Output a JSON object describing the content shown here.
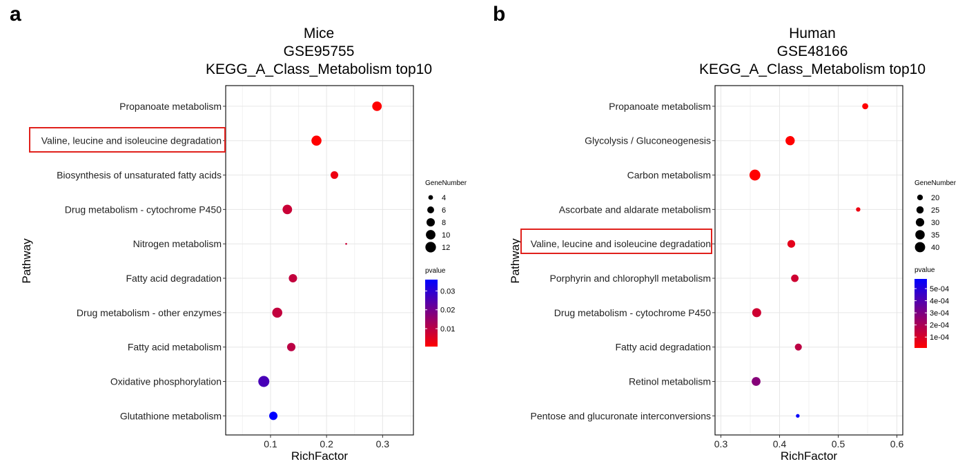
{
  "panels": [
    {
      "label": "a"
    },
    {
      "label": "b"
    }
  ],
  "chart_data": [
    {
      "type": "scatter",
      "title": [
        "Mice",
        "GSE95755",
        "KEGG_A_Class_Metabolism top10"
      ],
      "xlabel": "RichFactor",
      "ylabel": "Pathway",
      "xlim": [
        0.02,
        0.355
      ],
      "xticks": [
        0.1,
        0.2,
        0.3
      ],
      "xtick_labels": [
        "0.1",
        "0.2",
        "0.3"
      ],
      "grid": true,
      "categories": [
        "Propanoate metabolism",
        "Valine, leucine and isoleucine degradation",
        "Biosynthesis of unsaturated fatty acids",
        "Drug metabolism - cytochrome P450",
        "Nitrogen metabolism",
        "Fatty acid degradation",
        "Drug metabolism - other enzymes",
        "Fatty acid metabolism",
        "Oxidative phosphorylation",
        "Glutathione metabolism"
      ],
      "highlighted_category": "Valine, leucine and isoleucine degradation",
      "points": [
        {
          "pathway": "Propanoate metabolism",
          "x": 0.29,
          "gene_number": 10,
          "pvalue": 0.0005
        },
        {
          "pathway": "Valine, leucine and isoleucine degradation",
          "x": 0.182,
          "gene_number": 11,
          "pvalue": 0.0005
        },
        {
          "pathway": "Biosynthesis of unsaturated fatty acids",
          "x": 0.214,
          "gene_number": 7,
          "pvalue": 0.003
        },
        {
          "pathway": "Drug metabolism - cytochrome P450",
          "x": 0.13,
          "gene_number": 10,
          "pvalue": 0.008
        },
        {
          "pathway": "Nitrogen metabolism",
          "x": 0.235,
          "gene_number": 3,
          "pvalue": 0.008
        },
        {
          "pathway": "Fatty acid degradation",
          "x": 0.14,
          "gene_number": 8,
          "pvalue": 0.009
        },
        {
          "pathway": "Drug metabolism - other enzymes",
          "x": 0.112,
          "gene_number": 11,
          "pvalue": 0.009
        },
        {
          "pathway": "Fatty acid metabolism",
          "x": 0.137,
          "gene_number": 8,
          "pvalue": 0.01
        },
        {
          "pathway": "Oxidative phosphorylation",
          "x": 0.088,
          "gene_number": 13,
          "pvalue": 0.026
        },
        {
          "pathway": "Glutathione metabolism",
          "x": 0.105,
          "gene_number": 8,
          "pvalue": 0.036
        }
      ],
      "size_legend": {
        "title": "GeneNumber",
        "values": [
          4,
          6,
          8,
          10,
          12
        ],
        "labels": [
          "4",
          "6",
          "8",
          "10",
          "12"
        ],
        "min": 3,
        "max": 13
      },
      "color_legend": {
        "title": "pvalue",
        "min": 0.0005,
        "max": 0.036,
        "ticks": [
          0.01,
          0.02,
          0.03
        ],
        "tick_labels": [
          "0.01",
          "0.02",
          "0.03"
        ],
        "low_color": "#ff0000",
        "high_color": "#0000ff"
      }
    },
    {
      "type": "scatter",
      "title": [
        "Human",
        "GSE48166",
        "KEGG_A_Class_Metabolism top10"
      ],
      "xlabel": "RichFactor",
      "ylabel": "Pathway",
      "xlim": [
        0.29,
        0.61
      ],
      "xticks": [
        0.3,
        0.4,
        0.5,
        0.6
      ],
      "xtick_labels": [
        "0.3",
        "0.4",
        "0.5",
        "0.6"
      ],
      "grid": true,
      "categories": [
        "Propanoate metabolism",
        "Glycolysis / Gluconeogenesis",
        "Carbon metabolism",
        "Ascorbate and aldarate metabolism",
        "Valine, leucine and isoleucine degradation",
        "Porphyrin and chlorophyll metabolism",
        "Drug metabolism - cytochrome P450",
        "Fatty acid degradation",
        "Retinol metabolism",
        "Pentose and glucuronate interconversions"
      ],
      "highlighted_category": "Valine, leucine and isoleucine degradation",
      "points": [
        {
          "pathway": "Propanoate metabolism",
          "x": 0.546,
          "gene_number": 21,
          "pvalue": 1e-05
        },
        {
          "pathway": "Glycolysis / Gluconeogenesis",
          "x": 0.418,
          "gene_number": 34,
          "pvalue": 1e-05
        },
        {
          "pathway": "Carbon metabolism",
          "x": 0.358,
          "gene_number": 44,
          "pvalue": 1e-05
        },
        {
          "pathway": "Ascorbate and aldarate metabolism",
          "x": 0.534,
          "gene_number": 17,
          "pvalue": 5e-05
        },
        {
          "pathway": "Valine, leucine and isoleucine degradation",
          "x": 0.42,
          "gene_number": 27,
          "pvalue": 7e-05
        },
        {
          "pathway": "Porphyrin and chlorophyll metabolism",
          "x": 0.426,
          "gene_number": 26,
          "pvalue": 0.00012
        },
        {
          "pathway": "Drug metabolism - cytochrome P450",
          "x": 0.361,
          "gene_number": 33,
          "pvalue": 0.00012
        },
        {
          "pathway": "Fatty acid degradation",
          "x": 0.432,
          "gene_number": 24,
          "pvalue": 0.00016
        },
        {
          "pathway": "Retinol metabolism",
          "x": 0.36,
          "gene_number": 32,
          "pvalue": 0.00028
        },
        {
          "pathway": "Pentose and glucuronate interconversions",
          "x": 0.431,
          "gene_number": 16,
          "pvalue": 0.00057
        }
      ],
      "size_legend": {
        "title": "GeneNumber",
        "values": [
          20,
          25,
          30,
          35,
          40
        ],
        "labels": [
          "20",
          "25",
          "30",
          "35",
          "40"
        ],
        "min": 15,
        "max": 45
      },
      "color_legend": {
        "title": "pvalue",
        "min": 1e-05,
        "max": 0.00058,
        "ticks": [
          0.0001,
          0.0002,
          0.0003,
          0.0004,
          0.0005
        ],
        "tick_labels": [
          "1e-04",
          "2e-04",
          "3e-04",
          "4e-04",
          "5e-04"
        ],
        "low_color": "#ff0000",
        "high_color": "#0000ff"
      }
    }
  ]
}
